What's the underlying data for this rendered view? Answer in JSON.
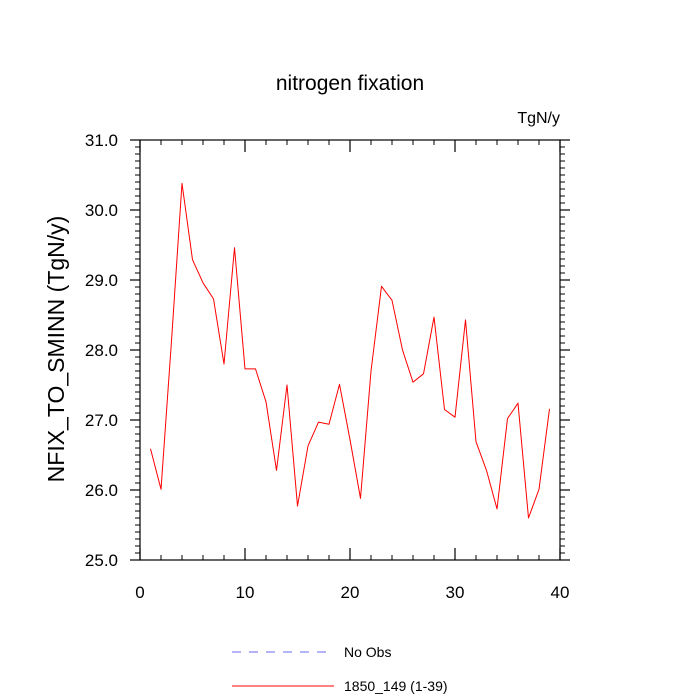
{
  "chart_data": {
    "type": "line",
    "title": "nitrogen fixation",
    "units_label": "TgN/y",
    "ylabel": "NFIX_TO_SMINN  (TgN/y)",
    "xlabel": "",
    "xlim": [
      0,
      40
    ],
    "ylim": [
      25.0,
      31.0
    ],
    "x_ticks": [
      0,
      10,
      20,
      30,
      40
    ],
    "x_tick_labels": [
      "0",
      "10",
      "20",
      "30",
      "40"
    ],
    "y_ticks": [
      25.0,
      26.0,
      27.0,
      28.0,
      29.0,
      30.0,
      31.0
    ],
    "y_tick_labels": [
      "25.0",
      "26.0",
      "27.0",
      "28.0",
      "29.0",
      "30.0",
      "31.0"
    ],
    "grid": false,
    "legend_position": "bottom-center",
    "series": [
      {
        "name": "1850_149 (1-39)",
        "color": "#ff0000",
        "style": "solid",
        "x": [
          1,
          2,
          3,
          4,
          5,
          6,
          7,
          8,
          9,
          10,
          11,
          12,
          13,
          14,
          15,
          16,
          17,
          18,
          19,
          20,
          21,
          22,
          23,
          24,
          25,
          26,
          27,
          28,
          29,
          30,
          31,
          32,
          33,
          34,
          35,
          36,
          37,
          38,
          39
        ],
        "values": [
          26.59,
          26.01,
          28.13,
          30.38,
          29.29,
          28.96,
          28.73,
          27.8,
          29.46,
          27.73,
          27.73,
          27.26,
          26.28,
          27.5,
          25.77,
          26.63,
          26.97,
          26.94,
          27.51,
          26.72,
          25.88,
          27.7,
          28.91,
          28.71,
          28.0,
          27.54,
          27.66,
          28.47,
          27.15,
          27.04,
          28.43,
          26.69,
          26.28,
          25.73,
          27.02,
          27.24,
          25.6,
          26.01,
          27.16
        ]
      }
    ],
    "legend": [
      {
        "label": "No Obs",
        "color": "#6a6aee",
        "style": "dashed"
      },
      {
        "label": "1850_149 (1-39)",
        "color": "#ff0000",
        "style": "solid"
      }
    ]
  }
}
